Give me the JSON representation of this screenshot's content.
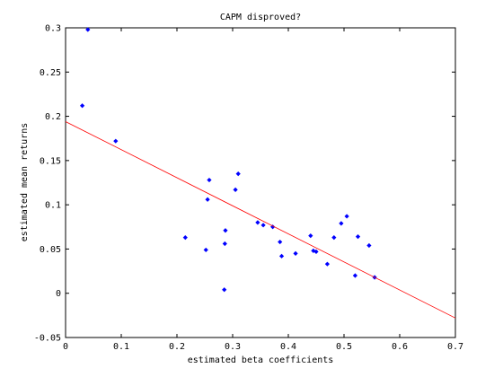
{
  "chart_data": {
    "type": "scatter",
    "title": "CAPM disproved?",
    "xlabel": "estimated beta coefficients",
    "ylabel": "estimated mean returns",
    "xlim": [
      0,
      0.7
    ],
    "ylim": [
      -0.05,
      0.3
    ],
    "x_ticks": [
      0,
      0.1,
      0.2,
      0.3,
      0.4,
      0.5,
      0.6,
      0.7
    ],
    "x_tick_labels": [
      "0",
      "0.1",
      "0.2",
      "0.3",
      "0.4",
      "0.5",
      "0.6",
      "0.7"
    ],
    "y_ticks": [
      -0.05,
      0,
      0.05,
      0.1,
      0.15,
      0.2,
      0.25,
      0.3
    ],
    "y_tick_labels": [
      "-0.05",
      "0",
      "0.05",
      "0.1",
      "0.15",
      "0.2",
      "0.25",
      "0.3"
    ],
    "grid": false,
    "legend": "none",
    "series": [
      {
        "mode": "markers",
        "marker": "diamond",
        "color": "#0000ff",
        "points": [
          [
            0.03,
            0.212
          ],
          [
            0.04,
            0.298
          ],
          [
            0.09,
            0.172
          ],
          [
            0.215,
            0.063
          ],
          [
            0.252,
            0.049
          ],
          [
            0.255,
            0.106
          ],
          [
            0.258,
            0.128
          ],
          [
            0.285,
            0.004
          ],
          [
            0.286,
            0.056
          ],
          [
            0.287,
            0.071
          ],
          [
            0.305,
            0.117
          ],
          [
            0.31,
            0.135
          ],
          [
            0.345,
            0.08
          ],
          [
            0.355,
            0.077
          ],
          [
            0.372,
            0.075
          ],
          [
            0.385,
            0.058
          ],
          [
            0.388,
            0.042
          ],
          [
            0.413,
            0.045
          ],
          [
            0.44,
            0.065
          ],
          [
            0.445,
            0.048
          ],
          [
            0.45,
            0.047
          ],
          [
            0.47,
            0.033
          ],
          [
            0.482,
            0.063
          ],
          [
            0.495,
            0.079
          ],
          [
            0.505,
            0.087
          ],
          [
            0.52,
            0.02
          ],
          [
            0.525,
            0.064
          ],
          [
            0.545,
            0.054
          ],
          [
            0.555,
            0.018
          ]
        ]
      },
      {
        "mode": "line",
        "color": "#ff0000",
        "points": [
          [
            0,
            0.194
          ],
          [
            0.7,
            -0.028
          ]
        ]
      }
    ]
  }
}
